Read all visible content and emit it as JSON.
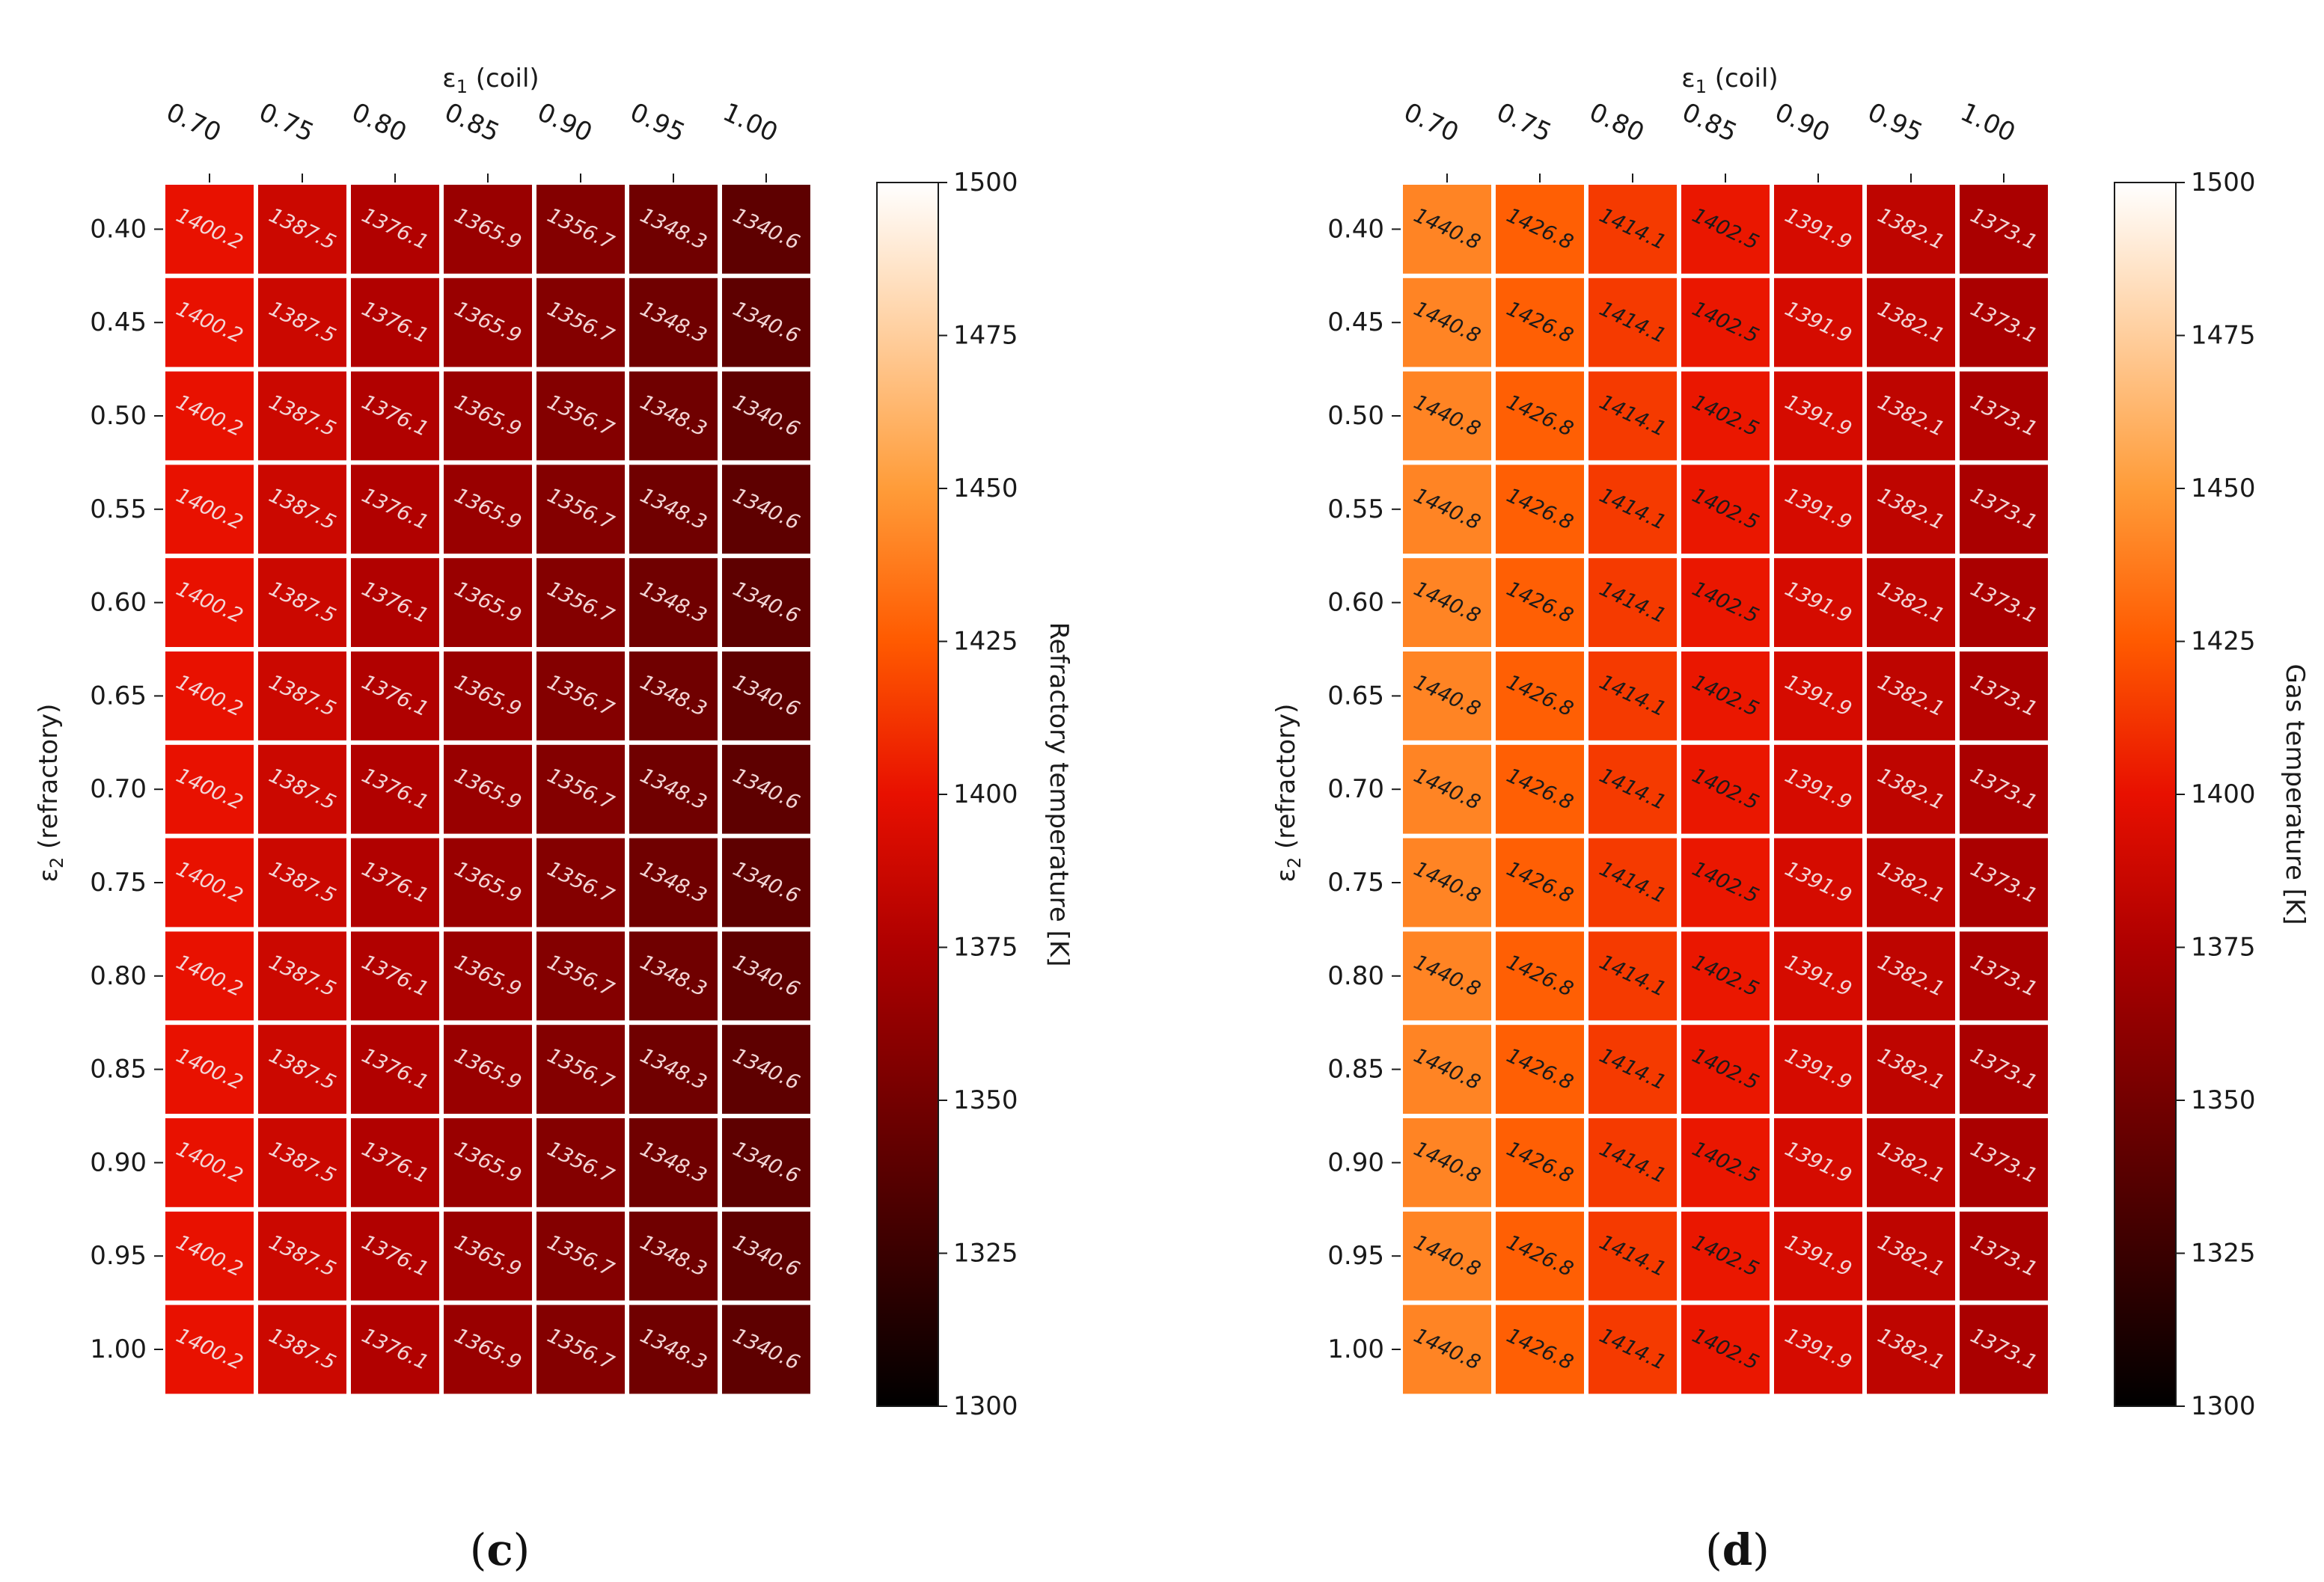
{
  "chart_data": [
    {
      "type": "heatmap",
      "panel_label": "c",
      "xlabel_symbol": "ε",
      "xlabel_sub": "1",
      "xlabel_text": " (coil)",
      "ylabel_symbol": "ε",
      "ylabel_sub": "2",
      "ylabel_text": " (refractory)",
      "x_categories": [
        "0.70",
        "0.75",
        "0.80",
        "0.85",
        "0.90",
        "0.95",
        "1.00"
      ],
      "y_categories": [
        "0.40",
        "0.45",
        "0.50",
        "0.55",
        "0.60",
        "0.65",
        "0.70",
        "0.75",
        "0.80",
        "0.85",
        "0.90",
        "0.95",
        "1.00"
      ],
      "row_values": [
        1400.2,
        1387.5,
        1376.1,
        1365.9,
        1356.7,
        1348.3,
        1340.6
      ],
      "value_labels": [
        "1400.2",
        "1387.5",
        "1376.1",
        "1365.9",
        "1356.7",
        "1348.3",
        "1340.6"
      ],
      "colorbar_label": "Refractory temperature [K]",
      "colorbar_ticks": [
        "1300",
        "1325",
        "1350",
        "1375",
        "1400",
        "1425",
        "1450",
        "1475",
        "1500"
      ],
      "vmin": 1300,
      "vmax": 1500,
      "colormap": "gist_heat",
      "annotation_color": "#f3d6d6"
    },
    {
      "type": "heatmap",
      "panel_label": "d",
      "xlabel_symbol": "ε",
      "xlabel_sub": "1",
      "xlabel_text": " (coil)",
      "ylabel_symbol": "ε",
      "ylabel_sub": "2",
      "ylabel_text": " (refractory)",
      "x_categories": [
        "0.70",
        "0.75",
        "0.80",
        "0.85",
        "0.90",
        "0.95",
        "1.00"
      ],
      "y_categories": [
        "0.40",
        "0.45",
        "0.50",
        "0.55",
        "0.60",
        "0.65",
        "0.70",
        "0.75",
        "0.80",
        "0.85",
        "0.90",
        "0.95",
        "1.00"
      ],
      "row_values": [
        1440.8,
        1426.8,
        1414.1,
        1402.5,
        1391.9,
        1382.1,
        1373.1
      ],
      "value_labels": [
        "1440.8",
        "1426.8",
        "1414.1",
        "1402.5",
        "1391.9",
        "1382.1",
        "1373.1"
      ],
      "label_colors": [
        "#1a1a1a",
        "#1a1a1a",
        "#1a1a1a",
        "#1a1a1a",
        "#f3d6d6",
        "#f3d6d6",
        "#f3d6d6"
      ],
      "colorbar_label": "Gas temperature [K]",
      "colorbar_ticks": [
        "1300",
        "1325",
        "1350",
        "1375",
        "1400",
        "1425",
        "1450",
        "1475",
        "1500"
      ],
      "vmin": 1300,
      "vmax": 1500,
      "colormap": "gist_heat"
    }
  ],
  "colormap_stops": [
    "#000000",
    "#3a0000",
    "#740000",
    "#ae0000",
    "#e81000",
    "#ff5a00",
    "#ff9c39",
    "#ffce9d",
    "#ffffff"
  ]
}
